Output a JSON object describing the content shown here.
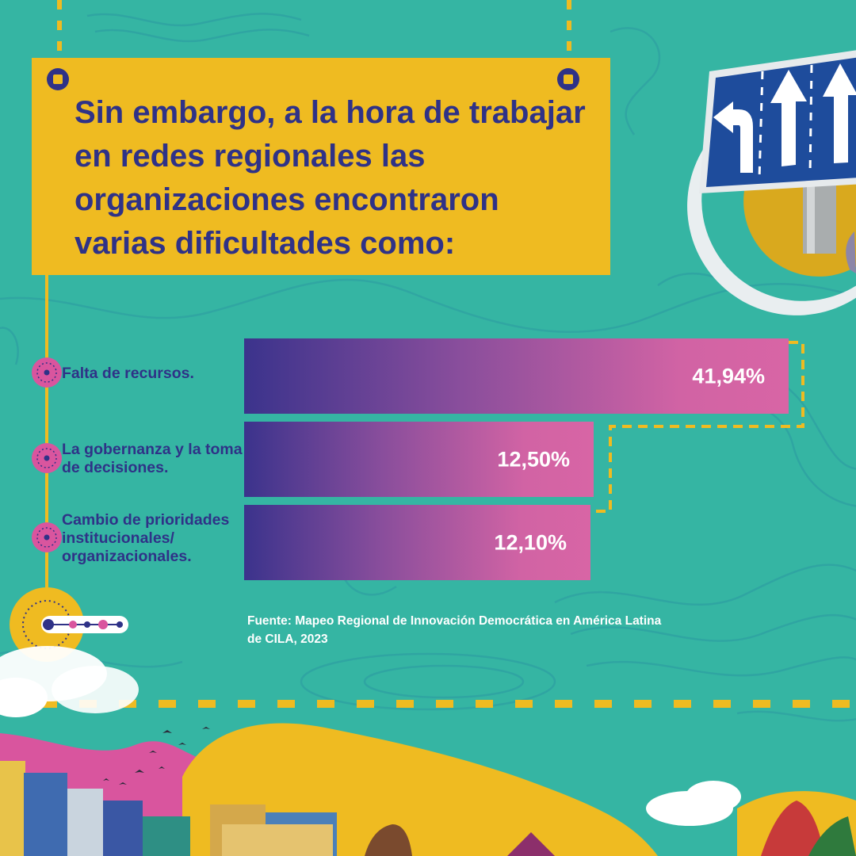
{
  "title": "Sin embargo, a la hora de trabajar en redes regionales las organizaciones encontraron varias dificultades como:",
  "chart_data": {
    "type": "bar",
    "orientation": "horizontal",
    "categories": [
      "Falta de recursos.",
      "La gobernanza y la toma de decisiones.",
      "Cambio de prioridades institucionales/ organizacionales."
    ],
    "values": [
      41.94,
      12.5,
      12.1
    ],
    "value_labels": [
      "41,94%",
      "12,50%",
      "12,10%"
    ],
    "unit": "%"
  },
  "source": "Fuente: Mapeo Regional de Innovación Democrática en América Latina de CILA, 2023",
  "colors": {
    "background": "#35b5a3",
    "title_card": "#efbb21",
    "title_text": "#2f3287",
    "bar_start": "#3b338c",
    "bar_end": "#d865a5",
    "accent_pink": "#d9559e",
    "accent_yellow": "#efbb21"
  },
  "icons": [
    "road-sign-arrows-icon",
    "bullet-target-icon",
    "progress-dots-icon",
    "cloud-icon",
    "bird-flock-icon"
  ]
}
